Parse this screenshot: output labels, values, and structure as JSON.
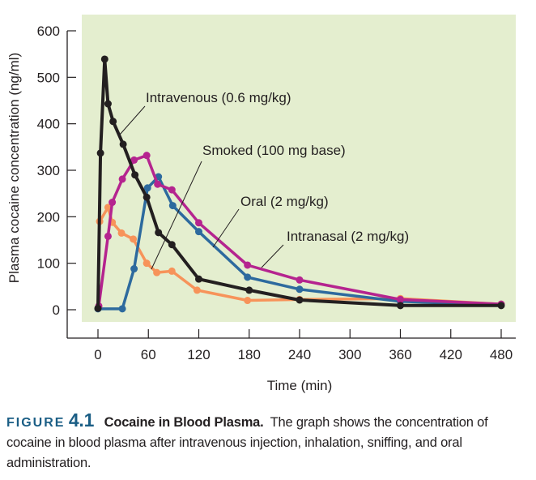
{
  "chart_data": {
    "type": "line",
    "title": "",
    "xlabel": "Time (min)",
    "ylabel": "Plasma cocaine concentration (ng/ml)",
    "xlim": [
      0,
      480
    ],
    "ylim": [
      0,
      600
    ],
    "xticks": [
      0,
      60,
      120,
      180,
      240,
      300,
      360,
      420,
      480
    ],
    "yticks": [
      0,
      100,
      200,
      300,
      400,
      500,
      600
    ],
    "grid": false,
    "legend": "inline annotations with leader lines",
    "background": "#e4eecf",
    "series": [
      {
        "name": "Intravenous (0.6 mg/kg)",
        "color": "#231f20",
        "x": [
          0,
          3,
          8,
          12,
          18,
          30,
          44,
          58,
          72,
          88,
          120,
          180,
          240,
          360,
          480
        ],
        "y": [
          3,
          337,
          539,
          443,
          405,
          356,
          290,
          242,
          166,
          140,
          66,
          42,
          21,
          9,
          9
        ]
      },
      {
        "name": "Smoked (100 mg base)",
        "color": "#f7935a",
        "x": [
          2,
          12,
          17,
          28,
          42,
          58,
          70,
          88,
          118,
          178,
          240,
          360,
          480
        ],
        "y": [
          190,
          220,
          188,
          165,
          152,
          100,
          80,
          83,
          42,
          20,
          22,
          24,
          12
        ]
      },
      {
        "name": "Oral (2 mg/kg)",
        "color": "#2d6a9e",
        "x": [
          0,
          29,
          43,
          59,
          72,
          89,
          120,
          178,
          240,
          360,
          480
        ],
        "y": [
          2,
          2,
          88,
          262,
          286,
          224,
          168,
          70,
          44,
          18,
          10
        ]
      },
      {
        "name": "Intranasal (2 mg/kg)",
        "color": "#b5248f",
        "x": [
          1,
          12,
          17,
          29,
          43,
          58,
          71,
          88,
          120,
          178,
          240,
          360,
          480
        ],
        "y": [
          8,
          158,
          231,
          281,
          322,
          332,
          270,
          258,
          187,
          96,
          64,
          22,
          12
        ]
      }
    ]
  },
  "annotations": [
    {
      "text": "Intravenous (0.6 mg/kg)",
      "series": 0
    },
    {
      "text": "Smoked (100 mg base)",
      "series": 1
    },
    {
      "text": "Oral (2 mg/kg)",
      "series": 2
    },
    {
      "text": "Intranasal (2 mg/kg)",
      "series": 3
    }
  ],
  "caption": {
    "figure_word": "FIGURE",
    "figure_number": "4.1",
    "title": "Cocaine in Blood Plasma.",
    "body": "The graph shows the concentration of cocaine in blood plasma after intravenous injection, inhalation, sniffing, and oral administration."
  }
}
